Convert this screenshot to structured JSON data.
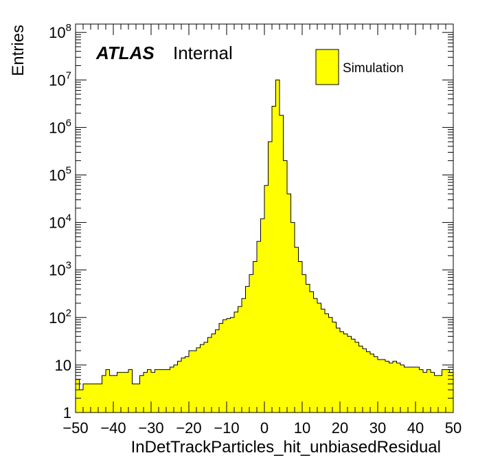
{
  "chart_data": {
    "type": "bar",
    "title": "",
    "xlabel": "InDetTrackParticles_hit_unbiasedResidual",
    "ylabel": "Entries",
    "xlim": [
      -50,
      50
    ],
    "ylim": [
      1,
      150000000
    ],
    "log_y": true,
    "bin_width": 1,
    "x_ticks": [
      "−50",
      "−40",
      "−30",
      "−20",
      "−10",
      "0",
      "10",
      "20",
      "30",
      "40",
      "50"
    ],
    "y_ticks": [
      {
        "base": "1",
        "exp": ""
      },
      {
        "base": "10",
        "exp": ""
      },
      {
        "base": "10",
        "exp": "2"
      },
      {
        "base": "10",
        "exp": "3"
      },
      {
        "base": "10",
        "exp": "4"
      },
      {
        "base": "10",
        "exp": "5"
      },
      {
        "base": "10",
        "exp": "6"
      },
      {
        "base": "10",
        "exp": "7"
      },
      {
        "base": "10",
        "exp": "8"
      }
    ],
    "series": [
      {
        "name": "Simulation",
        "color": "#ffff00",
        "bin_low_edges": [
          -50,
          -49,
          -48,
          -47,
          -46,
          -45,
          -44,
          -43,
          -42,
          -41,
          -40,
          -39,
          -38,
          -37,
          -36,
          -35,
          -34,
          -33,
          -32,
          -31,
          -30,
          -29,
          -28,
          -27,
          -26,
          -25,
          -24,
          -23,
          -22,
          -21,
          -20,
          -19,
          -18,
          -17,
          -16,
          -15,
          -14,
          -13,
          -12,
          -11,
          -10,
          -9,
          -8,
          -7,
          -6,
          -5,
          -4,
          -3,
          -2,
          -1,
          0,
          1,
          2,
          3,
          4,
          5,
          6,
          7,
          8,
          9,
          10,
          11,
          12,
          13,
          14,
          15,
          16,
          17,
          18,
          19,
          20,
          21,
          22,
          23,
          24,
          25,
          26,
          27,
          28,
          29,
          30,
          31,
          32,
          33,
          34,
          35,
          36,
          37,
          38,
          39,
          40,
          41,
          42,
          43,
          44,
          45,
          46,
          47,
          48,
          49
        ],
        "values": [
          5,
          3,
          4,
          4,
          4,
          4,
          4,
          6,
          8,
          6,
          6,
          7,
          7,
          7,
          8,
          4,
          4,
          6,
          7,
          8,
          7,
          8,
          8,
          8,
          8,
          9,
          10,
          12,
          14,
          15,
          20,
          20,
          23,
          27,
          30,
          38,
          45,
          55,
          75,
          90,
          95,
          100,
          130,
          170,
          250,
          450,
          800,
          1500,
          4000,
          12000,
          60000,
          500000,
          2800000,
          10000000,
          1800000,
          200000,
          40000,
          10000,
          3000,
          1500,
          800,
          500,
          350,
          250,
          200,
          150,
          120,
          100,
          80,
          60,
          50,
          45,
          40,
          35,
          30,
          25,
          22,
          19,
          17,
          15,
          13,
          13,
          12,
          11,
          12,
          11,
          10,
          9,
          9,
          9,
          9,
          8,
          7,
          8,
          7,
          6,
          6,
          8,
          8,
          7
        ]
      }
    ],
    "legend": {
      "position": "top-right",
      "entries": [
        "Simulation"
      ]
    },
    "annotations": {
      "experiment": "ATLAS",
      "status": "Internal"
    }
  }
}
